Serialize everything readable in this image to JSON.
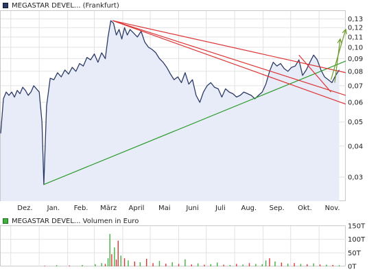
{
  "chart_data": [
    {
      "type": "line",
      "legend": "MEGASTAR DEVEL... (Frankfurt)",
      "y_scale": "log",
      "ylim": [
        0.024,
        0.14
      ],
      "y_ticks": [
        "0,13",
        "0,12",
        "0,11",
        "0,10",
        "0,09",
        "0,08",
        "0,07",
        "0,06",
        "0,05",
        "0,04",
        "0,03"
      ],
      "y_tick_values": [
        0.13,
        0.12,
        0.11,
        0.1,
        0.09,
        0.08,
        0.07,
        0.06,
        0.05,
        0.04,
        0.03
      ],
      "x_ticks": [
        "Dez.",
        "Jan.",
        "Feb.",
        "März",
        "April",
        "Mai",
        "Juni",
        "Juli",
        "Aug.",
        "Sep.",
        "Okt.",
        "Nov."
      ],
      "xlim": [
        "2019-11-20",
        "2020-11-30"
      ],
      "x_tick_dates": [
        "2019-12-01",
        "2020-01-01",
        "2020-02-01",
        "2020-03-01",
        "2020-04-01",
        "2020-05-01",
        "2020-06-01",
        "2020-07-01",
        "2020-08-01",
        "2020-09-01",
        "2020-10-01",
        "2020-11-01"
      ],
      "grid": true,
      "series": [
        {
          "role": "price",
          "color": "#2b3a66",
          "fill": "#e8ecf8",
          "x": [
            "2019-11-20",
            "2019-11-23",
            "2019-11-26",
            "2019-11-29",
            "2019-12-02",
            "2019-12-05",
            "2019-12-08",
            "2019-12-11",
            "2019-12-14",
            "2019-12-17",
            "2019-12-20",
            "2019-12-23",
            "2019-12-26",
            "2019-12-29",
            "2020-01-01",
            "2020-01-02",
            "2020-01-04",
            "2020-01-06",
            "2020-01-09",
            "2020-01-13",
            "2020-01-17",
            "2020-01-21",
            "2020-01-25",
            "2020-01-29",
            "2020-02-02",
            "2020-02-06",
            "2020-02-10",
            "2020-02-14",
            "2020-02-18",
            "2020-02-22",
            "2020-02-26",
            "2020-03-01",
            "2020-03-05",
            "2020-03-09",
            "2020-03-13",
            "2020-03-16",
            "2020-03-19",
            "2020-03-22",
            "2020-03-25",
            "2020-03-28",
            "2020-03-31",
            "2020-04-03",
            "2020-04-06",
            "2020-04-09",
            "2020-04-13",
            "2020-04-17",
            "2020-04-21",
            "2020-04-25",
            "2020-04-29",
            "2020-05-03",
            "2020-05-07",
            "2020-05-11",
            "2020-05-15",
            "2020-05-19",
            "2020-05-23",
            "2020-05-27",
            "2020-05-31",
            "2020-06-04",
            "2020-06-08",
            "2020-06-12",
            "2020-06-16",
            "2020-06-20",
            "2020-06-24",
            "2020-06-28",
            "2020-07-02",
            "2020-07-06",
            "2020-07-10",
            "2020-07-14",
            "2020-07-18",
            "2020-07-22",
            "2020-07-26",
            "2020-07-30",
            "2020-08-03",
            "2020-08-07",
            "2020-08-11",
            "2020-08-15",
            "2020-08-19",
            "2020-08-23",
            "2020-08-27",
            "2020-08-31",
            "2020-09-04",
            "2020-09-08",
            "2020-09-12",
            "2020-09-16",
            "2020-09-20",
            "2020-09-24",
            "2020-09-28",
            "2020-10-02",
            "2020-10-06",
            "2020-10-10",
            "2020-10-14",
            "2020-10-18",
            "2020-10-22",
            "2020-10-26",
            "2020-10-30",
            "2020-11-03",
            "2020-11-07",
            "2020-11-11",
            "2020-11-15",
            "2020-11-19",
            "2020-11-23"
          ],
          "values": [
            0.045,
            0.062,
            0.066,
            0.064,
            0.066,
            0.063,
            0.067,
            0.065,
            0.069,
            0.067,
            0.064,
            0.066,
            0.07,
            0.068,
            0.066,
            0.06,
            0.05,
            0.028,
            0.058,
            0.075,
            0.074,
            0.079,
            0.076,
            0.081,
            0.078,
            0.083,
            0.08,
            0.086,
            0.084,
            0.091,
            0.089,
            0.094,
            0.087,
            0.095,
            0.09,
            0.11,
            0.128,
            0.125,
            0.112,
            0.118,
            0.108,
            0.12,
            0.112,
            0.118,
            0.114,
            0.11,
            0.116,
            0.105,
            0.1,
            0.098,
            0.095,
            0.09,
            0.087,
            0.083,
            0.078,
            0.074,
            0.076,
            0.072,
            0.079,
            0.071,
            0.074,
            0.064,
            0.06,
            0.066,
            0.07,
            0.072,
            0.069,
            0.068,
            0.063,
            0.068,
            0.066,
            0.065,
            0.063,
            0.064,
            0.066,
            0.065,
            0.064,
            0.062,
            0.064,
            0.066,
            0.071,
            0.08,
            0.087,
            0.084,
            0.086,
            0.082,
            0.08,
            0.083,
            0.084,
            0.089,
            0.077,
            0.081,
            0.087,
            0.093,
            0.089,
            0.081,
            0.076,
            0.074,
            0.072,
            0.077,
            0.081
          ]
        }
      ],
      "trendlines": [
        {
          "color": "#2a9a2a",
          "x": [
            "2020-01-06",
            "2020-11-30"
          ],
          "y": [
            0.028,
            0.088
          ]
        },
        {
          "color": "#dd3333",
          "x": [
            "2020-03-21",
            "2020-11-30"
          ],
          "y": [
            0.128,
            0.079
          ]
        },
        {
          "color": "#dd3333",
          "x": [
            "2020-03-21",
            "2020-11-30"
          ],
          "y": [
            0.128,
            0.059
          ]
        },
        {
          "color": "#dd3333",
          "x": [
            "2020-03-21",
            "2020-11-30"
          ],
          "y": [
            0.128,
            0.064
          ]
        },
        {
          "color": "#dd3333",
          "x": [
            "2020-10-10",
            "2020-11-14"
          ],
          "y": [
            0.093,
            0.066
          ]
        },
        {
          "color": "#6a9a2a",
          "x": [
            "2020-11-14",
            "2020-11-30"
          ],
          "y": [
            0.074,
            0.118
          ],
          "arrow": true
        },
        {
          "color": "#6a9a2a",
          "x": [
            "2020-11-18",
            "2020-11-24"
          ],
          "y": [
            0.072,
            0.108
          ],
          "arrow": true
        }
      ]
    },
    {
      "type": "bar",
      "legend": "MEGASTAR DEVEL... Volumen in Euro",
      "ylim": [
        0,
        150000
      ],
      "y_ticks": [
        "150T",
        "100T",
        "50T",
        "0T"
      ],
      "y_tick_values": [
        150000,
        100000,
        50000,
        0
      ],
      "grid": true,
      "color_up": "#40b040",
      "color_down": "#dd3333",
      "x": [
        "2020-01-07",
        "2020-01-20",
        "2020-02-03",
        "2020-02-17",
        "2020-03-02",
        "2020-03-09",
        "2020-03-13",
        "2020-03-16",
        "2020-03-18",
        "2020-03-20",
        "2020-03-23",
        "2020-03-25",
        "2020-03-27",
        "2020-03-30",
        "2020-04-03",
        "2020-04-07",
        "2020-04-14",
        "2020-04-20",
        "2020-04-27",
        "2020-05-04",
        "2020-05-11",
        "2020-05-18",
        "2020-05-25",
        "2020-06-01",
        "2020-06-08",
        "2020-06-15",
        "2020-06-22",
        "2020-06-29",
        "2020-07-06",
        "2020-07-13",
        "2020-07-20",
        "2020-07-27",
        "2020-08-03",
        "2020-08-10",
        "2020-08-17",
        "2020-08-24",
        "2020-08-31",
        "2020-09-04",
        "2020-09-08",
        "2020-09-14",
        "2020-09-21",
        "2020-09-28",
        "2020-10-05",
        "2020-10-12",
        "2020-10-19",
        "2020-10-26",
        "2020-11-02",
        "2020-11-09",
        "2020-11-16",
        "2020-11-23"
      ],
      "values": [
        2000,
        4000,
        3000,
        5000,
        8000,
        12000,
        9000,
        30000,
        120000,
        45000,
        70000,
        25000,
        95000,
        40000,
        30000,
        22000,
        18000,
        15000,
        28000,
        12000,
        20000,
        10000,
        15000,
        9000,
        26000,
        7000,
        11000,
        6000,
        8000,
        14000,
        6000,
        5000,
        9000,
        7000,
        12000,
        9000,
        8000,
        22000,
        30000,
        18000,
        14000,
        10000,
        12000,
        9000,
        8000,
        11000,
        7000,
        6000,
        5000,
        4000
      ],
      "directions": [
        "down",
        "up",
        "down",
        "up",
        "up",
        "up",
        "down",
        "up",
        "up",
        "down",
        "up",
        "down",
        "down",
        "up",
        "down",
        "up",
        "down",
        "up",
        "down",
        "down",
        "up",
        "down",
        "up",
        "down",
        "up",
        "down",
        "up",
        "down",
        "up",
        "up",
        "down",
        "up",
        "down",
        "up",
        "down",
        "up",
        "up",
        "up",
        "down",
        "up",
        "down",
        "up",
        "down",
        "up",
        "down",
        "up",
        "down",
        "up",
        "down",
        "up"
      ]
    }
  ]
}
